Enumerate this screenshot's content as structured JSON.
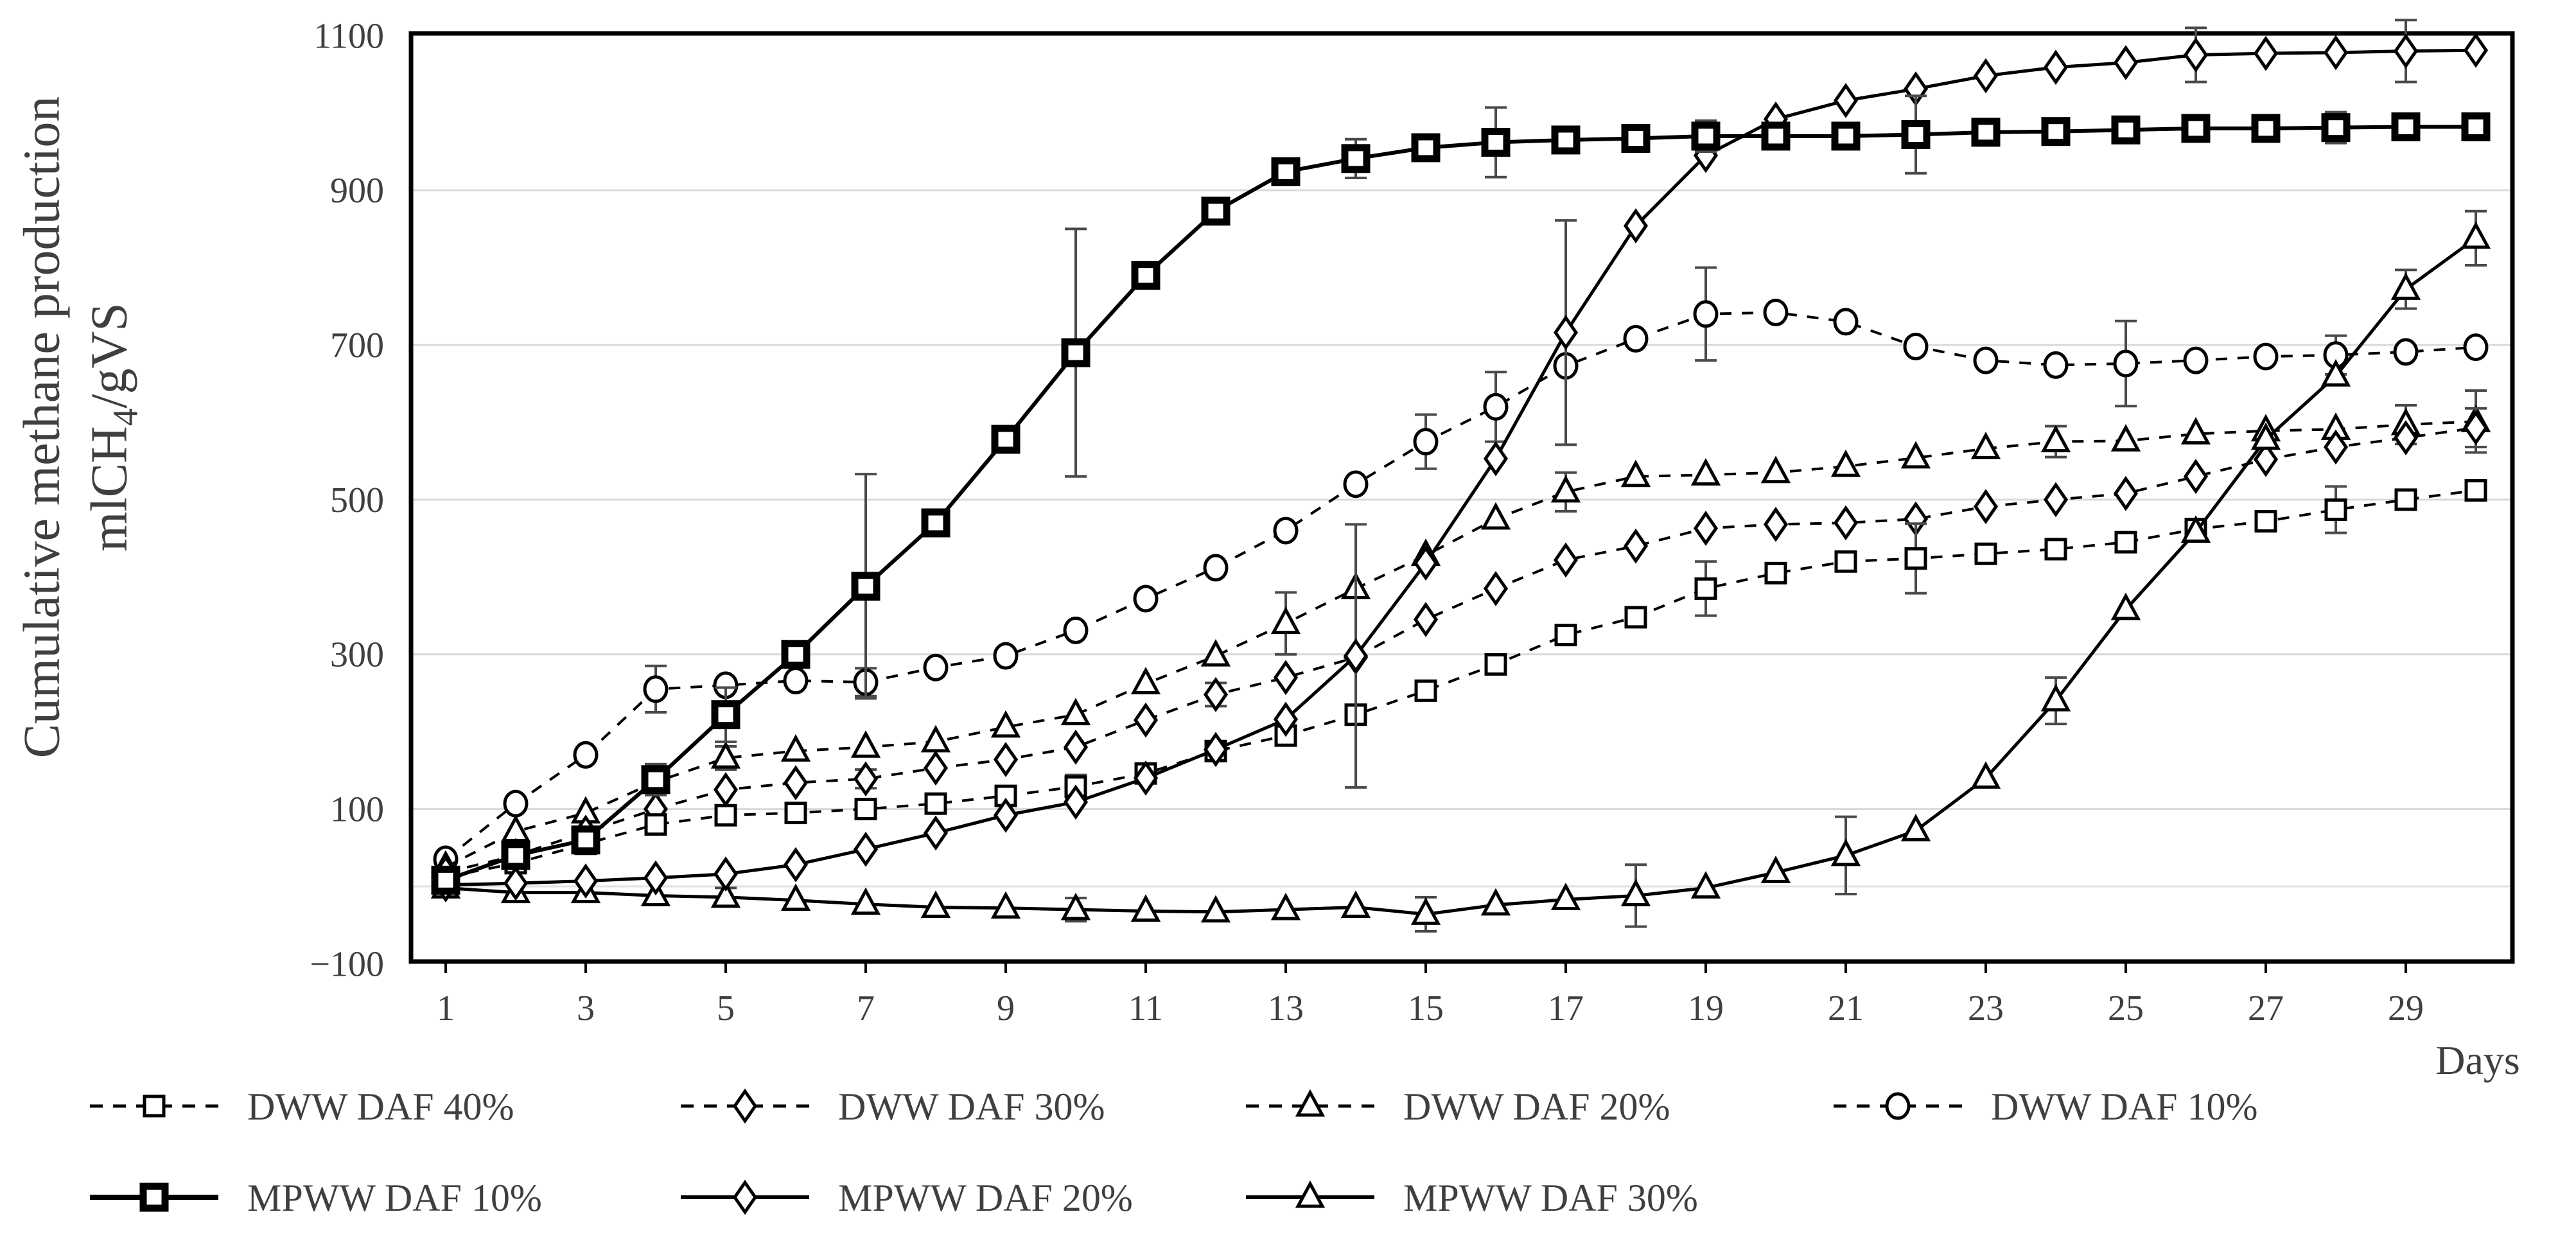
{
  "figure": {
    "ylabel_line1": "Cumulative methane production",
    "ylabel_formula": {
      "prefix": "mlCH",
      "sub": "4",
      "suffix": "/gVS"
    },
    "xlabel": "Days"
  },
  "colors": {
    "background": "#ffffff",
    "frame": "#000000",
    "grid": "#d9d9d9",
    "zero_line": "#e2e2e2",
    "series_stroke": "#000000",
    "error_bar": "#4a4a4a",
    "text": "#3f3f3f"
  },
  "chart_data": {
    "type": "line",
    "title": "",
    "xlabel": "Days",
    "ylabel": "Cumulative methane production mlCH4/gVS",
    "ylim": [
      -100,
      1100
    ],
    "xlim": [
      1,
      30
    ],
    "grid": "horizontal",
    "grid_y": [
      0,
      100,
      300,
      500,
      700,
      900
    ],
    "y_ticks": [
      -100,
      100,
      300,
      500,
      700,
      900,
      1100
    ],
    "y_tick_labels": [
      "−100",
      "100",
      "300",
      "500",
      "700",
      "900",
      "1100"
    ],
    "x_ticks": [
      1,
      3,
      5,
      7,
      9,
      11,
      13,
      15,
      17,
      19,
      21,
      23,
      25,
      27,
      29
    ],
    "x": [
      1,
      2,
      3,
      4,
      5,
      6,
      7,
      8,
      9,
      10,
      11,
      12,
      13,
      14,
      15,
      16,
      17,
      18,
      19,
      20,
      21,
      22,
      23,
      24,
      25,
      26,
      27,
      28,
      29,
      30
    ],
    "legend_position": "bottom",
    "legend_rows": [
      [
        0,
        1,
        2,
        3
      ],
      [
        4,
        5,
        6
      ]
    ],
    "draw_order": [
      3,
      2,
      1,
      0,
      6,
      5,
      4
    ],
    "series": [
      {
        "name": "DWW DAF 40%",
        "marker": "square",
        "line": "dashed",
        "values": [
          12,
          30,
          55,
          80,
          92,
          95,
          100,
          107,
          117,
          129,
          146,
          175,
          195,
          222,
          253,
          287,
          325,
          348,
          385,
          405,
          420,
          424,
          430,
          436,
          445,
          462,
          472,
          487,
          500,
          512
        ],
        "errors": [
          [
            10,
            15
          ],
          [
            19,
            35
          ],
          [
            22,
            45
          ],
          [
            28,
            30
          ]
        ]
      },
      {
        "name": "DWW DAF 30%",
        "marker": "diamond",
        "line": "dashed",
        "values": [
          18,
          40,
          70,
          100,
          125,
          134,
          139,
          153,
          164,
          180,
          215,
          248,
          270,
          296,
          345,
          385,
          422,
          440,
          463,
          468,
          470,
          475,
          491,
          500,
          508,
          530,
          552,
          568,
          580,
          593
        ],
        "errors": [
          [
            7,
            12
          ],
          [
            12,
            15
          ],
          [
            30,
            25
          ]
        ]
      },
      {
        "name": "DWW DAF 20%",
        "marker": "triangle",
        "line": "dashed",
        "values": [
          25,
          71,
          95,
          135,
          166,
          175,
          180,
          187,
          206,
          222,
          262,
          298,
          340,
          385,
          428,
          475,
          510,
          530,
          532,
          535,
          543,
          554,
          566,
          575,
          576,
          585,
          589,
          591,
          597,
          601
        ],
        "errors": [
          [
            5,
            15
          ],
          [
            13,
            40
          ],
          [
            17,
            25
          ],
          [
            24,
            20
          ],
          [
            29,
            25
          ],
          [
            30,
            40
          ]
        ]
      },
      {
        "name": "DWW DAF 10%",
        "marker": "circle",
        "line": "dashed",
        "values": [
          35,
          107,
          170,
          255,
          260,
          266,
          264,
          283,
          298,
          331,
          372,
          412,
          460,
          520,
          575,
          620,
          673,
          708,
          740,
          742,
          730,
          698,
          680,
          674,
          676,
          680,
          685,
          687,
          691,
          697
        ],
        "errors": [
          [
            4,
            30
          ],
          [
            7,
            18
          ],
          [
            15,
            35
          ],
          [
            16,
            45
          ],
          [
            19,
            60
          ],
          [
            25,
            55
          ],
          [
            28,
            25
          ]
        ]
      },
      {
        "name": "MPWW DAF 10%",
        "marker": "square-bold",
        "line": "solid",
        "values": [
          8,
          40,
          60,
          138,
          222,
          300,
          388,
          470,
          578,
          690,
          790,
          873,
          924,
          941,
          955,
          962,
          965,
          967,
          970,
          970,
          970,
          972,
          975,
          976,
          978,
          980,
          980,
          981,
          982,
          982
        ],
        "errors": [
          [
            4,
            20
          ],
          [
            5,
            35
          ],
          [
            7,
            145
          ],
          [
            10,
            160
          ],
          [
            14,
            25
          ],
          [
            16,
            45
          ],
          [
            19,
            20
          ],
          [
            22,
            50
          ],
          [
            28,
            20
          ]
        ]
      },
      {
        "name": "MPWW DAF 20%",
        "marker": "diamond",
        "line": "solid",
        "values": [
          2,
          4,
          7,
          11,
          16,
          28,
          48,
          69,
          92,
          109,
          140,
          177,
          216,
          298,
          418,
          553,
          716,
          854,
          945,
          992,
          1016,
          1031,
          1048,
          1059,
          1065,
          1075,
          1077,
          1078,
          1080,
          1081
        ],
        "errors": [
          [
            14,
            170
          ],
          [
            17,
            145
          ],
          [
            26,
            35
          ],
          [
            29,
            40
          ]
        ]
      },
      {
        "name": "MPWW DAF 30%",
        "marker": "triangle",
        "line": "solid",
        "values": [
          -2,
          -8,
          -8,
          -12,
          -14,
          -18,
          -23,
          -27,
          -28,
          -30,
          -32,
          -33,
          -30,
          -27,
          -36,
          -24,
          -17,
          -12,
          -2,
          18,
          40,
          72,
          140,
          240,
          358,
          458,
          578,
          660,
          772,
          838
        ],
        "errors": [
          [
            5,
            12
          ],
          [
            10,
            15
          ],
          [
            15,
            22
          ],
          [
            18,
            40
          ],
          [
            21,
            50
          ],
          [
            24,
            30
          ],
          [
            29,
            25
          ],
          [
            30,
            35
          ]
        ]
      }
    ]
  }
}
